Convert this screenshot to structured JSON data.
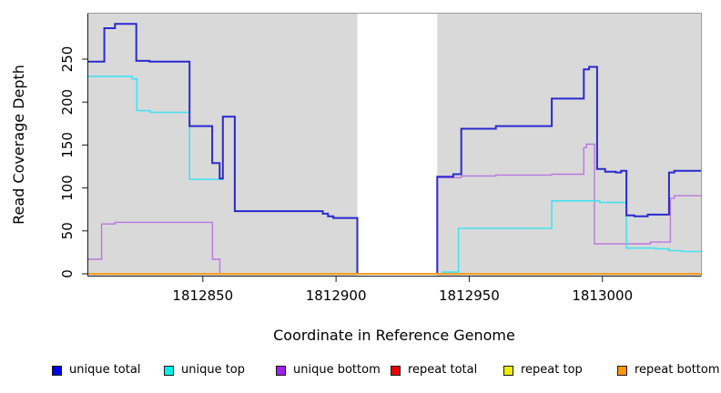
{
  "chart_data": {
    "type": "line",
    "subtype": "step",
    "title": "",
    "xlabel": "Coordinate in Reference Genome",
    "ylabel": "Read Coverage Depth",
    "x_range": [
      1812807,
      1813037
    ],
    "y_range": [
      0,
      303
    ],
    "grid": false,
    "plot_bg_color": "#d9d9d9",
    "page_bg_color": "#ffffff",
    "gap_region": {
      "x_start": 1812908,
      "x_end": 1812938,
      "color": "#ffffff"
    },
    "x_ticks": [
      {
        "value": 1812850,
        "label": "1812850"
      },
      {
        "value": 1812900,
        "label": "1812900"
      },
      {
        "value": 1812950,
        "label": "1812950"
      },
      {
        "value": 1813000,
        "label": "1813000"
      }
    ],
    "y_ticks": [
      {
        "value": 0,
        "label": "0"
      },
      {
        "value": 50,
        "label": "50"
      },
      {
        "value": 100,
        "label": "100"
      },
      {
        "value": 150,
        "label": "150"
      },
      {
        "value": 200,
        "label": "200"
      },
      {
        "value": 250,
        "label": "250"
      }
    ],
    "legend_position": "bottom",
    "series": [
      {
        "name": "unique total",
        "color": "#2a2ad0",
        "line_width": 2,
        "points": [
          [
            1812807,
            247
          ],
          [
            1812813,
            286
          ],
          [
            1812817,
            291
          ],
          [
            1812825,
            248
          ],
          [
            1812830,
            247
          ],
          [
            1812845,
            172
          ],
          [
            1812853.5,
            129
          ],
          [
            1812856.3,
            111
          ],
          [
            1812857.5,
            183
          ],
          [
            1812862,
            73
          ],
          [
            1812895,
            70
          ],
          [
            1812897,
            67
          ],
          [
            1812899,
            65
          ],
          [
            1812908,
            0
          ],
          [
            1812938,
            113
          ],
          [
            1812944,
            116
          ],
          [
            1812947,
            169
          ],
          [
            1812960,
            172
          ],
          [
            1812981,
            204
          ],
          [
            1812993,
            238
          ],
          [
            1812995,
            241
          ],
          [
            1812998,
            122
          ],
          [
            1813001,
            119
          ],
          [
            1813005,
            118
          ],
          [
            1813007,
            120
          ],
          [
            1813009,
            68
          ],
          [
            1813012,
            67
          ],
          [
            1813017,
            69
          ],
          [
            1813025,
            118
          ],
          [
            1813027,
            120
          ],
          [
            1813037,
            120
          ]
        ]
      },
      {
        "name": "unique top",
        "color": "#45e2ef",
        "line_width": 1.6,
        "points": [
          [
            1812807,
            230
          ],
          [
            1812823.5,
            227
          ],
          [
            1812825.2,
            190
          ],
          [
            1812830.3,
            188
          ],
          [
            1812845,
            110
          ],
          [
            1812857.5,
            183
          ],
          [
            1812862,
            73
          ],
          [
            1812895,
            70
          ],
          [
            1812897,
            67
          ],
          [
            1812899,
            65
          ],
          [
            1812908,
            0
          ],
          [
            1812938,
            0
          ],
          [
            1812940,
            2
          ],
          [
            1812946,
            53
          ],
          [
            1812981,
            85
          ],
          [
            1812999,
            83
          ],
          [
            1813009,
            30
          ],
          [
            1813020,
            29
          ],
          [
            1813025,
            27
          ],
          [
            1813030,
            26
          ],
          [
            1813037,
            26
          ]
        ]
      },
      {
        "name": "unique bottom",
        "color": "#bb77e0",
        "line_width": 1.4,
        "points": [
          [
            1812807,
            17
          ],
          [
            1812812,
            58
          ],
          [
            1812817,
            60
          ],
          [
            1812853.6,
            17
          ],
          [
            1812856.4,
            0
          ],
          [
            1812908,
            0
          ],
          [
            1812938,
            112
          ],
          [
            1812947,
            114
          ],
          [
            1812960,
            115
          ],
          [
            1812981,
            116
          ],
          [
            1812993,
            147
          ],
          [
            1812994,
            151
          ],
          [
            1812997,
            35
          ],
          [
            1813018,
            37
          ],
          [
            1813025.5,
            88
          ],
          [
            1813027,
            91
          ],
          [
            1813037,
            91
          ]
        ]
      },
      {
        "name": "repeat total",
        "color": "#ee0000",
        "line_width": 1,
        "points": [
          [
            1812807,
            0
          ],
          [
            1813037,
            0
          ]
        ]
      },
      {
        "name": "repeat top",
        "color": "#eeee00",
        "line_width": 1,
        "points": [
          [
            1812807,
            0
          ],
          [
            1813037,
            0
          ]
        ]
      },
      {
        "name": "repeat bottom",
        "color": "#ff9d20",
        "line_width": 2,
        "points": [
          [
            1812807,
            0
          ],
          [
            1813037,
            0
          ]
        ]
      }
    ]
  },
  "legend": {
    "items": [
      {
        "label": "unique total",
        "color": "#0000ee"
      },
      {
        "label": "unique top",
        "color": "#00eeee"
      },
      {
        "label": "unique bottom",
        "color": "#a020f0"
      },
      {
        "label": "repeat total",
        "color": "#ee0000"
      },
      {
        "label": "repeat top",
        "color": "#eeee00"
      },
      {
        "label": "repeat bottom",
        "color": "#ff9800"
      }
    ]
  }
}
